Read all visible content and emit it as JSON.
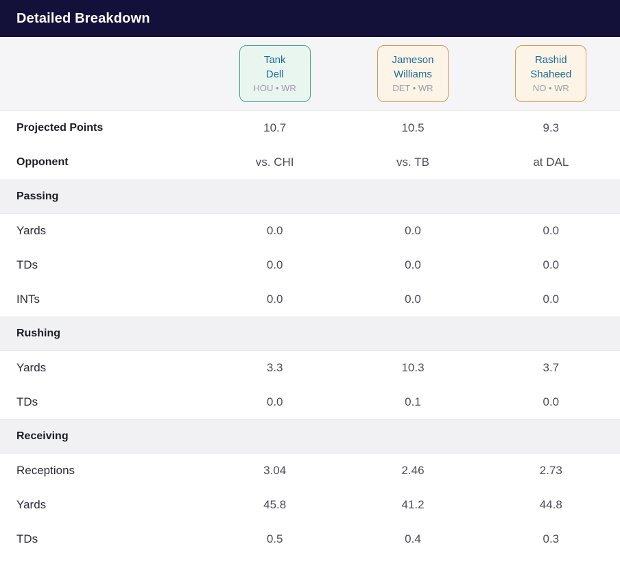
{
  "header": {
    "title": "Detailed Breakdown"
  },
  "colors": {
    "title_bar_bg": "#13113a",
    "title_text": "#ffffff",
    "players_band_bg": "#f5f5f8",
    "section_row_bg": "#f1f1f4",
    "player_name_text": "#1e6b96",
    "player_team_text": "#9b9ba3",
    "value_text": "#4c4c55"
  },
  "players": [
    {
      "name_line1": "Tank",
      "name_line2": "Dell",
      "team_pos": "HOU • WR",
      "card_border": "#42a584",
      "card_bg": "#e9f6f0"
    },
    {
      "name_line1": "Jameson",
      "name_line2": "Williams",
      "team_pos": "DET • WR",
      "card_border": "#d9984f",
      "card_bg": "#fdf4e8"
    },
    {
      "name_line1": "Rashid",
      "name_line2": "Shaheed",
      "team_pos": "NO • WR",
      "card_border": "#d9984f",
      "card_bg": "#fdf4e8"
    }
  ],
  "rows": [
    {
      "type": "stat",
      "label": "Projected Points",
      "values": [
        "10.7",
        "10.5",
        "9.3"
      ]
    },
    {
      "type": "stat",
      "label": "Opponent",
      "values": [
        "vs. CHI",
        "vs. TB",
        "at DAL"
      ]
    },
    {
      "type": "section",
      "label": "Passing"
    },
    {
      "type": "stat",
      "label": "Yards",
      "values": [
        "0.0",
        "0.0",
        "0.0"
      ]
    },
    {
      "type": "stat",
      "label": "TDs",
      "values": [
        "0.0",
        "0.0",
        "0.0"
      ]
    },
    {
      "type": "stat",
      "label": "INTs",
      "values": [
        "0.0",
        "0.0",
        "0.0"
      ]
    },
    {
      "type": "section",
      "label": "Rushing"
    },
    {
      "type": "stat",
      "label": "Yards",
      "values": [
        "3.3",
        "10.3",
        "3.7"
      ]
    },
    {
      "type": "stat",
      "label": "TDs",
      "values": [
        "0.0",
        "0.1",
        "0.0"
      ]
    },
    {
      "type": "section",
      "label": "Receiving"
    },
    {
      "type": "stat",
      "label": "Receptions",
      "values": [
        "3.04",
        "2.46",
        "2.73"
      ]
    },
    {
      "type": "stat",
      "label": "Yards",
      "values": [
        "45.8",
        "41.2",
        "44.8"
      ]
    },
    {
      "type": "stat",
      "label": "TDs",
      "values": [
        "0.5",
        "0.4",
        "0.3"
      ]
    }
  ]
}
